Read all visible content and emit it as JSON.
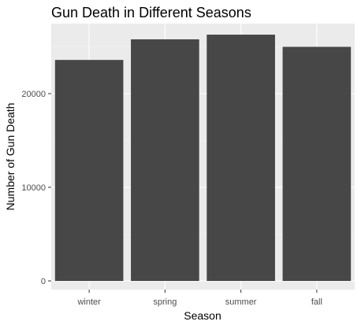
{
  "chart_data": {
    "type": "bar",
    "title": "Gun Death in Different Seasons",
    "xlabel": "Season",
    "ylabel": "Number of Gun Death",
    "categories": [
      "winter",
      "spring",
      "summer",
      "fall"
    ],
    "values": [
      23600,
      25800,
      26300,
      25000
    ],
    "ylim": [
      0,
      27800
    ],
    "yticks": [
      0,
      10000,
      20000
    ],
    "grid": true,
    "colors": {
      "bar": "#474747",
      "panel": "#ebebeb",
      "grid_major": "#ffffff",
      "grid_minor": "#f5f5f5"
    }
  }
}
